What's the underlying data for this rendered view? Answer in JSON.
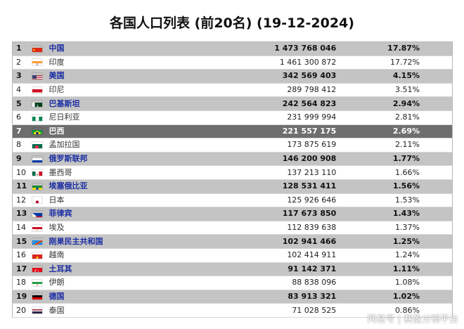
{
  "title": "各国人口列表 (前20名) (19-12-2024)",
  "rows": [
    {
      "rank": "1",
      "flag": "cn-flag",
      "name": "中国",
      "population": "1 473 768 046",
      "percent": "17.87%"
    },
    {
      "rank": "2",
      "flag": "in-flag",
      "name": "印度",
      "population": "1 461 300 872",
      "percent": "17.72%"
    },
    {
      "rank": "3",
      "flag": "us-flag",
      "name": "美国",
      "population": "342 569 403",
      "percent": "4.15%"
    },
    {
      "rank": "4",
      "flag": "id-flag",
      "name": "印尼",
      "population": "289 798 412",
      "percent": "3.51%"
    },
    {
      "rank": "5",
      "flag": "pk-flag",
      "name": "巴基斯坦",
      "population": "242 564 823",
      "percent": "2.94%"
    },
    {
      "rank": "6",
      "flag": "ng-flag",
      "name": "尼日利亚",
      "population": "231 999 994",
      "percent": "2.81%"
    },
    {
      "rank": "7",
      "flag": "br-flag",
      "name": "巴西",
      "population": "221 557 175",
      "percent": "2.69%"
    },
    {
      "rank": "8",
      "flag": "bd-flag",
      "name": "孟加拉国",
      "population": "173 875 619",
      "percent": "2.11%"
    },
    {
      "rank": "9",
      "flag": "ru-flag",
      "name": "俄罗斯联邦",
      "population": "146 200 908",
      "percent": "1.77%"
    },
    {
      "rank": "10",
      "flag": "mx-flag",
      "name": "墨西哥",
      "population": "137 213 110",
      "percent": "1.66%"
    },
    {
      "rank": "11",
      "flag": "et-flag",
      "name": "埃塞俄比亚",
      "population": "128 531 411",
      "percent": "1.56%"
    },
    {
      "rank": "12",
      "flag": "jp-flag",
      "name": "日本",
      "population": "125 926 646",
      "percent": "1.53%"
    },
    {
      "rank": "13",
      "flag": "ph-flag",
      "name": "菲律宾",
      "population": "117 673 850",
      "percent": "1.43%"
    },
    {
      "rank": "14",
      "flag": "eg-flag",
      "name": "埃及",
      "population": "112 839 638",
      "percent": "1.37%"
    },
    {
      "rank": "15",
      "flag": "cd-flag",
      "name": "刚果民主共和国",
      "population": "102 941 466",
      "percent": "1.25%"
    },
    {
      "rank": "16",
      "flag": "vn-flag",
      "name": "越南",
      "population": "102 414 911",
      "percent": "1.24%"
    },
    {
      "rank": "17",
      "flag": "tr-flag",
      "name": "土耳其",
      "population": "91 142 371",
      "percent": "1.11%"
    },
    {
      "rank": "18",
      "flag": "ir-flag",
      "name": "伊朗",
      "population": "88 838 096",
      "percent": "1.08%"
    },
    {
      "rank": "19",
      "flag": "de-flag",
      "name": "德国",
      "population": "83 913 321",
      "percent": "1.02%"
    },
    {
      "rank": "20",
      "flag": "th-flag",
      "name": "泰国",
      "population": "71 028 525",
      "percent": "0.86%"
    }
  ],
  "watermark": "网易号 | 赛盈分销平台",
  "colors": {
    "highlight_row": "#c4c4c4",
    "dark_row": "#6e6e6e",
    "link_text": "#1c2ea3"
  }
}
